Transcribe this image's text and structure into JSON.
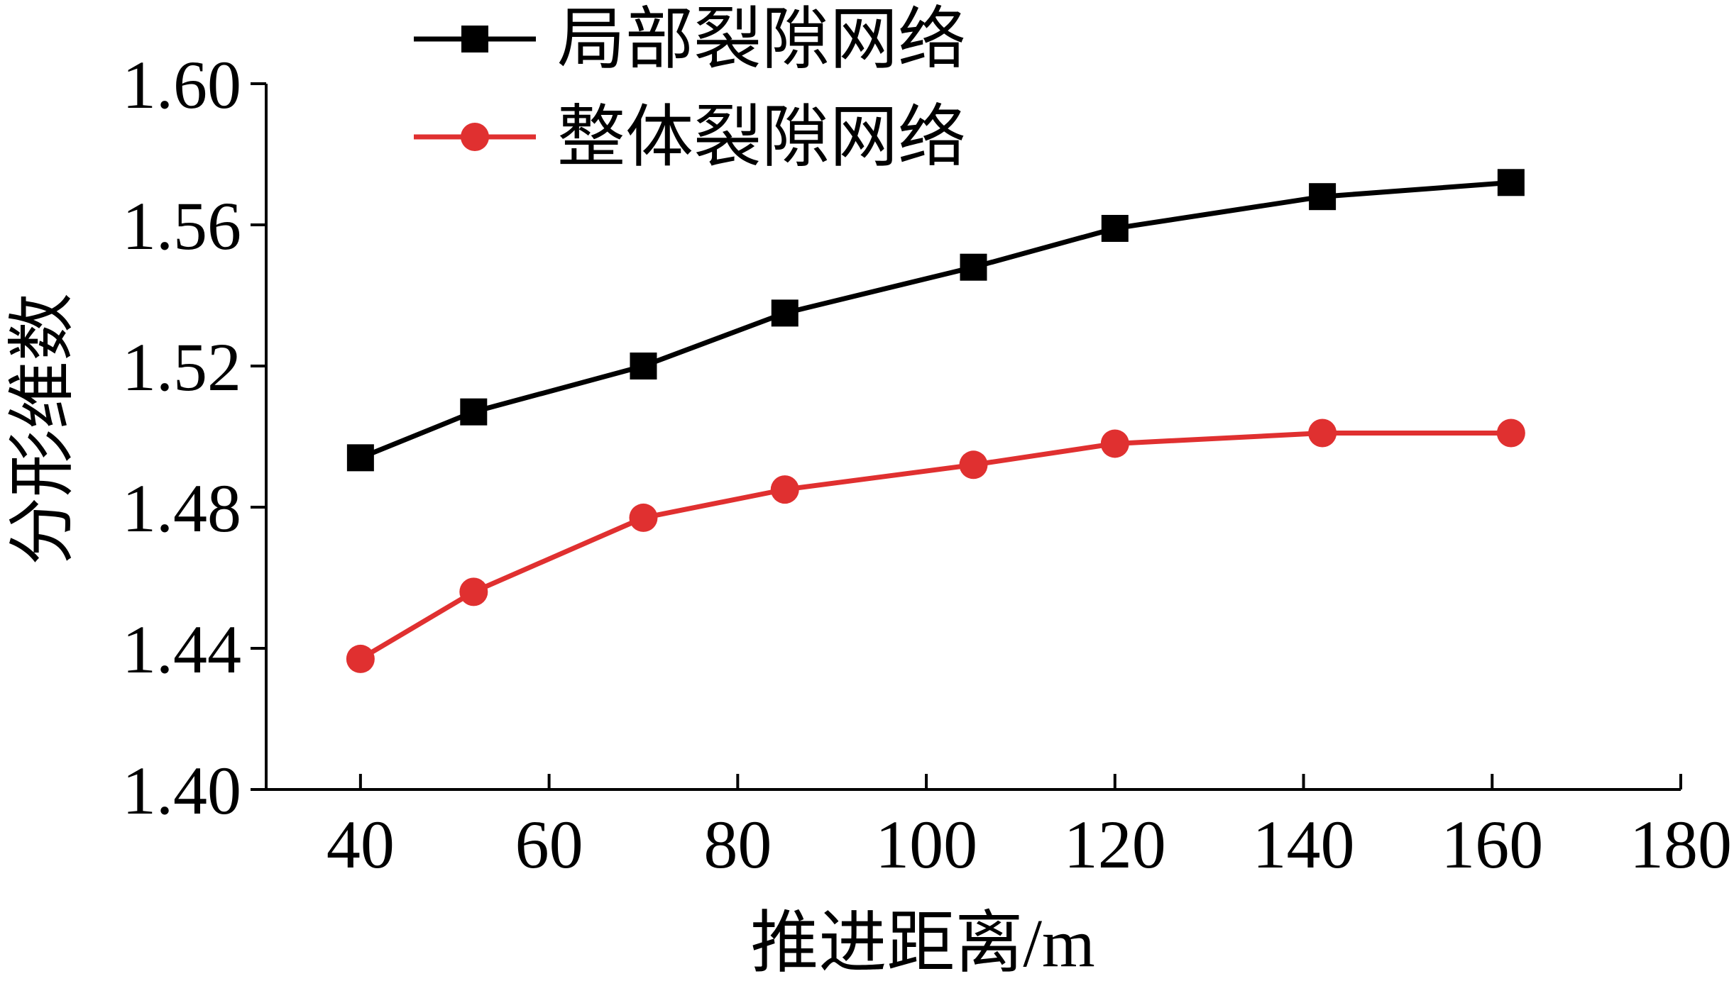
{
  "chart_data": {
    "type": "line",
    "xlabel": "推进距离/m",
    "ylabel": "分形维数",
    "xlim": [
      30,
      180
    ],
    "ylim": [
      1.4,
      1.6
    ],
    "x_ticks": [
      "40",
      "60",
      "80",
      "100",
      "120",
      "140",
      "160",
      "180"
    ],
    "y_ticks": [
      "1.40",
      "1.44",
      "1.48",
      "1.52",
      "1.56",
      "1.60"
    ],
    "grid": false,
    "legend_position": "top-left",
    "x": [
      40,
      52,
      70,
      85,
      105,
      120,
      142,
      162
    ],
    "series": [
      {
        "name": "局部裂隙网络",
        "color": "#000000",
        "marker": "square",
        "values": [
          1.494,
          1.507,
          1.52,
          1.535,
          1.548,
          1.559,
          1.568,
          1.572
        ]
      },
      {
        "name": "整体裂隙网络",
        "color": "#e03030",
        "marker": "circle",
        "values": [
          1.437,
          1.456,
          1.477,
          1.485,
          1.492,
          1.498,
          1.501,
          1.501
        ]
      }
    ]
  }
}
